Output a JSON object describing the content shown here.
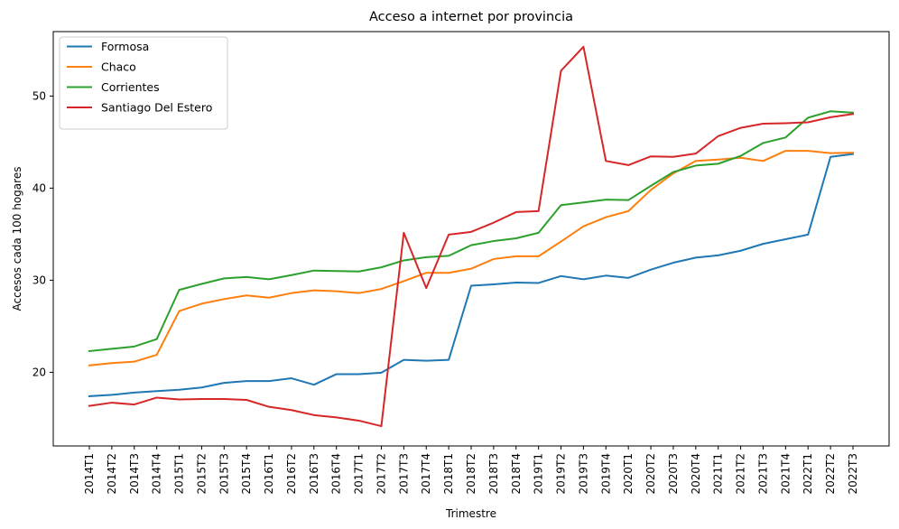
{
  "chart_data": {
    "type": "line",
    "title": "Acceso a internet por provincia",
    "xlabel": "Trimestre",
    "ylabel": "Accesos cada 100 hogares",
    "categories": [
      "2014T1",
      "2014T2",
      "2014T3",
      "2014T4",
      "2015T1",
      "2015T2",
      "2015T3",
      "2015T4",
      "2016T1",
      "2016T2",
      "2016T3",
      "2016T4",
      "2017T1",
      "2017T2",
      "2017T3",
      "2017T4",
      "2018T1",
      "2018T2",
      "2018T3",
      "2018T4",
      "2019T1",
      "2019T2",
      "2019T3",
      "2019T4",
      "2020T1",
      "2020T2",
      "2020T3",
      "2020T4",
      "2021T1",
      "2021T2",
      "2021T3",
      "2021T4",
      "2022T1",
      "2022T2",
      "2022T3"
    ],
    "ylim": [
      12.0,
      57.0
    ],
    "yticks": [
      20,
      30,
      40,
      50
    ],
    "grid": false,
    "legend_position": "top-left",
    "series": [
      {
        "name": "Formosa",
        "color": "#1f77b4",
        "values": [
          17.4,
          17.55,
          17.8,
          17.95,
          18.1,
          18.35,
          18.85,
          19.05,
          19.05,
          19.35,
          18.65,
          19.8,
          19.8,
          19.95,
          21.35,
          21.25,
          21.35,
          29.4,
          29.55,
          29.75,
          29.7,
          30.45,
          30.1,
          30.5,
          30.25,
          31.15,
          31.9,
          32.45,
          32.7,
          33.2,
          33.95,
          34.45,
          34.95,
          43.4,
          43.7
        ]
      },
      {
        "name": "Chaco",
        "color": "#ff7f0e",
        "values": [
          20.75,
          21.0,
          21.15,
          21.9,
          26.65,
          27.45,
          27.95,
          28.35,
          28.1,
          28.6,
          28.9,
          28.8,
          28.6,
          29.05,
          29.9,
          30.8,
          30.8,
          31.25,
          32.3,
          32.6,
          32.6,
          34.2,
          35.85,
          36.85,
          37.5,
          39.8,
          41.6,
          42.95,
          43.1,
          43.3,
          42.95,
          44.05,
          44.05,
          43.8,
          43.85
        ]
      },
      {
        "name": "Corrientes",
        "color": "#2ca02c",
        "values": [
          22.3,
          22.55,
          22.8,
          23.6,
          28.95,
          29.6,
          30.2,
          30.35,
          30.1,
          30.55,
          31.05,
          31.0,
          30.95,
          31.4,
          32.15,
          32.5,
          32.65,
          33.8,
          34.25,
          34.55,
          35.15,
          38.15,
          38.45,
          38.75,
          38.7,
          40.25,
          41.75,
          42.45,
          42.65,
          43.5,
          44.9,
          45.5,
          47.65,
          48.35,
          48.2
        ]
      },
      {
        "name": "Santiago Del Estero",
        "color": "#d62728",
        "values": [
          16.35,
          16.7,
          16.5,
          17.25,
          17.05,
          17.1,
          17.1,
          17.0,
          16.25,
          15.9,
          15.35,
          15.1,
          14.75,
          14.15,
          35.15,
          29.15,
          34.95,
          35.25,
          36.25,
          37.4,
          37.5,
          52.75,
          55.35,
          42.95,
          42.5,
          43.45,
          43.4,
          43.75,
          45.65,
          46.55,
          47.0,
          47.05,
          47.15,
          47.7,
          48.05
        ]
      }
    ]
  }
}
